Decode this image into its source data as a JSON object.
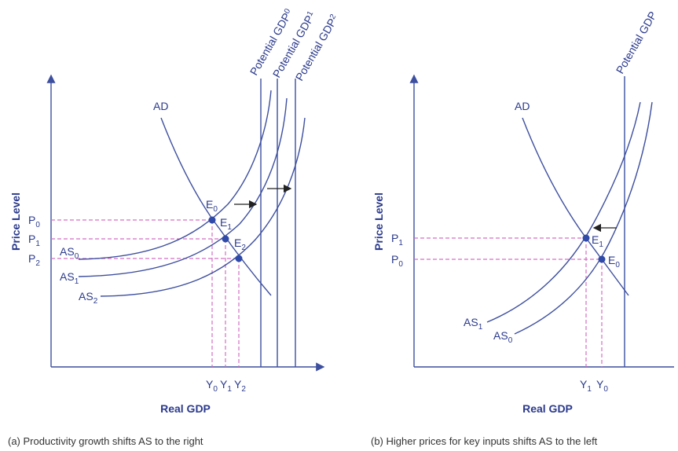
{
  "panel_a": {
    "y_axis": "Price Level",
    "x_axis": "Real GDP",
    "caption": "(a) Productivity growth shifts AS to the right",
    "ad": "AD",
    "as": [
      {
        "main": "AS",
        "sub": "0"
      },
      {
        "main": "AS",
        "sub": "1"
      },
      {
        "main": "AS",
        "sub": "2"
      }
    ],
    "potential": [
      {
        "main": "Potential GDP",
        "sub": "0"
      },
      {
        "main": "Potential GDP",
        "sub": "1"
      },
      {
        "main": "Potential GDP",
        "sub": "2"
      }
    ],
    "prices": [
      {
        "main": "P",
        "sub": "0"
      },
      {
        "main": "P",
        "sub": "1"
      },
      {
        "main": "P",
        "sub": "2"
      }
    ],
    "outputs": [
      {
        "main": "Y",
        "sub": "0"
      },
      {
        "main": "Y",
        "sub": "1"
      },
      {
        "main": "Y",
        "sub": "2"
      }
    ],
    "equilibria": [
      {
        "main": "E",
        "sub": "0"
      },
      {
        "main": "E",
        "sub": "1"
      },
      {
        "main": "E",
        "sub": "2"
      }
    ]
  },
  "panel_b": {
    "y_axis": "Price Level",
    "x_axis": "Real GDP",
    "caption": "(b) Higher prices for key inputs shifts AS to the left",
    "ad": "AD",
    "as": [
      {
        "main": "AS",
        "sub": "1"
      },
      {
        "main": "AS",
        "sub": "0"
      }
    ],
    "potential": "Potential GDP",
    "prices": [
      {
        "main": "P",
        "sub": "1"
      },
      {
        "main": "P",
        "sub": "0"
      }
    ],
    "outputs": [
      {
        "main": "Y",
        "sub": "1"
      },
      {
        "main": "Y",
        "sub": "0"
      }
    ],
    "equilibria": [
      {
        "main": "E",
        "sub": "1"
      },
      {
        "main": "E",
        "sub": "0"
      }
    ]
  }
}
